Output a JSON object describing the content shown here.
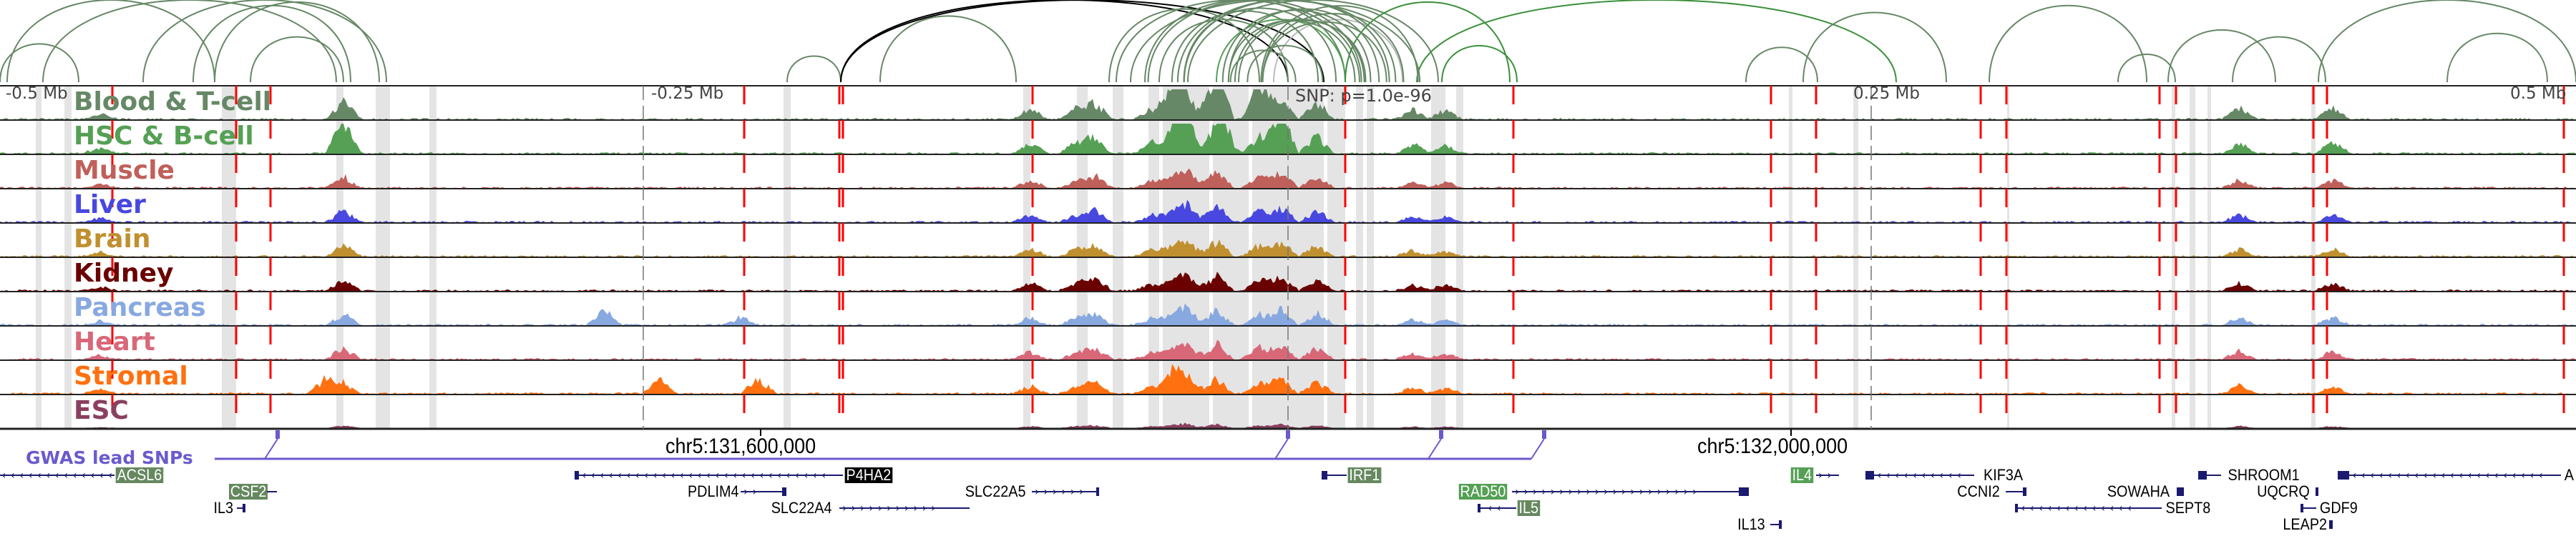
{
  "scale": {
    "left": "-0.5 Mb",
    "midleft": "-0.25 Mb",
    "midright": "0.25 Mb",
    "right": "0.5 Mb",
    "snp": "SNP: p=1.0e-96"
  },
  "tracks": [
    {
      "label": "Blood & T-cell",
      "color": "#668866"
    },
    {
      "label": "HSC & B-cell",
      "color": "#55a055"
    },
    {
      "label": "Muscle",
      "color": "#c0605a"
    },
    {
      "label": "Liver",
      "color": "#4848e0"
    },
    {
      "label": "Brain",
      "color": "#c09030"
    },
    {
      "label": "Kidney",
      "color": "#6a0000"
    },
    {
      "label": "Pancreas",
      "color": "#88a8e0"
    },
    {
      "label": "Heart",
      "color": "#d86878"
    },
    {
      "label": "Stromal",
      "color": "#ff7010"
    },
    {
      "label": "ESC",
      "color": "#8a4060"
    }
  ],
  "gwas": {
    "label": "GWAS lead SNPs",
    "color": "#6a5acd"
  },
  "coords": [
    "chr5:131,600,000",
    "chr5:132,000,000"
  ],
  "genes": [
    "ACSL6",
    "P4HA2",
    "IRF1",
    "IL4",
    "KIF3A",
    "SHROOM1",
    "A",
    "CSF2",
    "PDLIM4",
    "SLC22A5",
    "RAD50",
    "CCNI2",
    "SOWAHA",
    "UQCRQ",
    "IL3",
    "SLC22A4",
    "IL5",
    "SEPT8",
    "GDF9",
    "IL13",
    "LEAP2"
  ]
}
